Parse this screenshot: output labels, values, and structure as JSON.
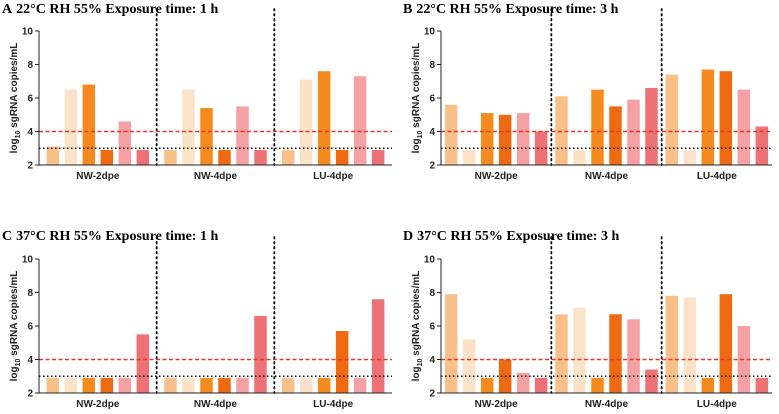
{
  "colors": [
    "#F9C08A",
    "#FCE3C8",
    "#F58A1F",
    "#EE6A12",
    "#F5A0A2",
    "#EE7176"
  ],
  "threshold_colors": {
    "red": "#E03A2B",
    "black": "#000000"
  },
  "chart_data": [
    {
      "type": "bar",
      "panel_letter": "A",
      "title": "22°C RH 55% Exposure time: 1 h",
      "ylabel_main": "log",
      "ylabel_sub": "10",
      "ylabel_rest": " sgRNA copies/mL",
      "ylim": [
        2,
        10
      ],
      "yticks": [
        "2",
        "4",
        "6",
        "8",
        "10"
      ],
      "categories": [
        "NW-2dpe",
        "NW-4dpe",
        "LU-4dpe"
      ],
      "values": [
        [
          3.1,
          6.5,
          6.8,
          2.9,
          4.6,
          2.9
        ],
        [
          2.9,
          6.5,
          5.4,
          2.9,
          5.5,
          2.9
        ],
        [
          2.9,
          7.1,
          7.6,
          2.9,
          7.3,
          2.9
        ]
      ],
      "thresholds": [
        4,
        3
      ]
    },
    {
      "type": "bar",
      "panel_letter": "B",
      "title": "22°C RH 55% Exposure time: 3 h",
      "ylabel_main": "log",
      "ylabel_sub": "10",
      "ylabel_rest": " sgRNA copies/mL",
      "ylim": [
        2,
        10
      ],
      "yticks": [
        "2",
        "4",
        "6",
        "8",
        "10"
      ],
      "categories": [
        "NW-2dpe",
        "NW-4dpe",
        "LU-4dpe"
      ],
      "values": [
        [
          5.6,
          2.9,
          5.1,
          5.0,
          5.1,
          4.0
        ],
        [
          6.1,
          2.9,
          6.5,
          5.5,
          5.9,
          6.6
        ],
        [
          7.4,
          2.9,
          7.7,
          7.6,
          6.5,
          4.3
        ]
      ],
      "thresholds": [
        4,
        3
      ]
    },
    {
      "type": "bar",
      "panel_letter": "C",
      "title": "37°C RH 55% Exposure time: 1 h",
      "ylabel_main": "log",
      "ylabel_sub": "10",
      "ylabel_rest": " sgRNA copies/mL",
      "ylim": [
        2,
        10
      ],
      "yticks": [
        "2",
        "4",
        "6",
        "8",
        "10"
      ],
      "categories": [
        "NW-2dpe",
        "NW-4dpe",
        "LU-4dpe"
      ],
      "values": [
        [
          2.9,
          2.9,
          2.9,
          2.9,
          2.9,
          5.5
        ],
        [
          2.9,
          2.9,
          2.9,
          2.9,
          2.9,
          6.6
        ],
        [
          2.9,
          2.9,
          2.9,
          5.7,
          2.9,
          7.6
        ]
      ],
      "thresholds": [
        4,
        3
      ]
    },
    {
      "type": "bar",
      "panel_letter": "D",
      "title": "37°C RH 55% Exposure time: 3 h",
      "ylabel_main": "log",
      "ylabel_sub": "10",
      "ylabel_rest": " sgRNA copies/mL",
      "ylim": [
        2,
        10
      ],
      "yticks": [
        "2",
        "4",
        "6",
        "8",
        "10"
      ],
      "categories": [
        "NW-2dpe",
        "NW-4dpe",
        "LU-4dpe"
      ],
      "values": [
        [
          7.9,
          5.2,
          2.9,
          4.0,
          3.2,
          2.9
        ],
        [
          6.7,
          7.1,
          2.9,
          6.7,
          6.4,
          3.4
        ],
        [
          7.8,
          7.7,
          2.9,
          7.9,
          6.0,
          2.9
        ]
      ],
      "thresholds": [
        4,
        3
      ]
    }
  ]
}
